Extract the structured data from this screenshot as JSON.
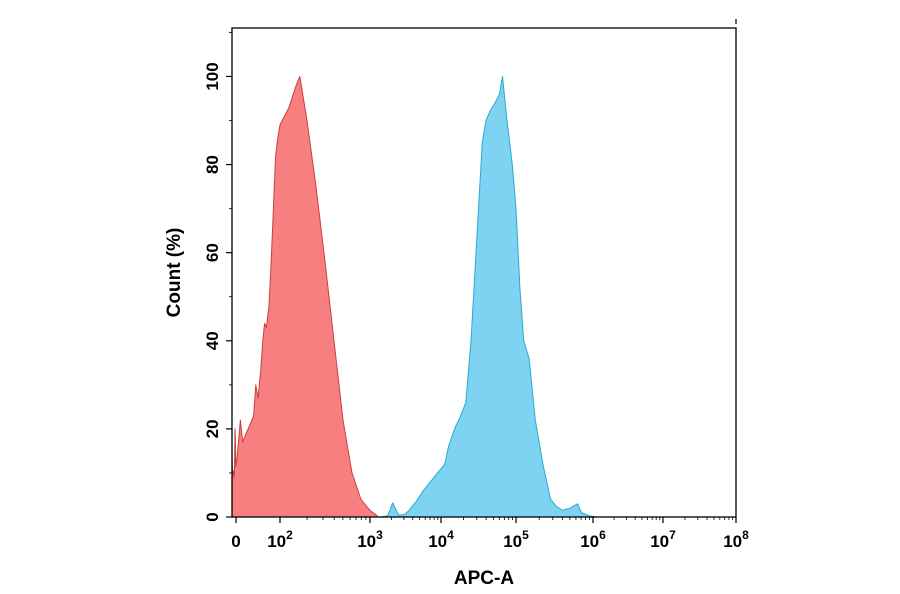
{
  "chart_data": {
    "type": "area",
    "xlabel": "APC-A",
    "ylabel": "Count (%)",
    "x_scale": "log",
    "xlim": [
      -1,
      8
    ],
    "ylim": [
      0,
      111
    ],
    "grid": false,
    "legend": "none",
    "x_ticks": [
      {
        "value": 0,
        "base": "0",
        "exp": ""
      },
      {
        "value": 2,
        "base": "10",
        "exp": "2"
      },
      {
        "value": 3,
        "base": "10",
        "exp": "3"
      },
      {
        "value": 4,
        "base": "10",
        "exp": "4"
      },
      {
        "value": 5,
        "base": "10",
        "exp": "5"
      },
      {
        "value": 6,
        "base": "10",
        "exp": "6"
      },
      {
        "value": 7,
        "base": "10",
        "exp": "7"
      },
      {
        "value": 8,
        "base": "10",
        "exp": "8"
      }
    ],
    "y_ticks": [
      {
        "value": 0,
        "label": "0"
      },
      {
        "value": 20,
        "label": "20"
      },
      {
        "value": 40,
        "label": "40"
      },
      {
        "value": 60,
        "label": "60"
      },
      {
        "value": 80,
        "label": "80"
      },
      {
        "value": 100,
        "label": "100"
      }
    ],
    "series": [
      {
        "fill": "#f87f7f",
        "stroke": "#c84040",
        "points": [
          [
            -0.98,
            14
          ],
          [
            -0.92,
            11
          ],
          [
            -0.85,
            9.5
          ],
          [
            -0.75,
            10
          ],
          [
            -0.6,
            10.5
          ],
          [
            -0.45,
            9
          ],
          [
            -0.35,
            12
          ],
          [
            -0.25,
            20
          ],
          [
            -0.15,
            18
          ],
          [
            -0.05,
            11.5
          ],
          [
            0.05,
            13.5
          ],
          [
            0.2,
            22
          ],
          [
            0.3,
            17
          ],
          [
            0.42,
            18.5
          ],
          [
            0.55,
            20
          ],
          [
            0.68,
            21.5
          ],
          [
            0.8,
            23
          ],
          [
            0.9,
            30
          ],
          [
            1.0,
            27
          ],
          [
            1.12,
            33
          ],
          [
            1.22,
            40
          ],
          [
            1.3,
            44
          ],
          [
            1.38,
            43
          ],
          [
            1.5,
            48
          ],
          [
            1.6,
            58
          ],
          [
            1.7,
            70
          ],
          [
            1.8,
            82
          ],
          [
            1.9,
            86
          ],
          [
            2.0,
            89
          ],
          [
            2.1,
            93
          ],
          [
            2.18,
            98
          ],
          [
            2.22,
            100
          ],
          [
            2.3,
            90
          ],
          [
            2.4,
            75
          ],
          [
            2.5,
            58
          ],
          [
            2.6,
            40
          ],
          [
            2.7,
            22
          ],
          [
            2.8,
            10
          ],
          [
            2.9,
            4
          ],
          [
            3.0,
            1.5
          ],
          [
            3.1,
            0.3
          ]
        ]
      },
      {
        "fill": "#7fd3f2",
        "stroke": "#2aa9cf",
        "points": [
          [
            3.15,
            0
          ],
          [
            3.25,
            0.3
          ],
          [
            3.32,
            3.2
          ],
          [
            3.4,
            0.5
          ],
          [
            3.48,
            0.5
          ],
          [
            3.55,
            1.5
          ],
          [
            3.65,
            3.5
          ],
          [
            3.75,
            6
          ],
          [
            3.85,
            8
          ],
          [
            3.95,
            10
          ],
          [
            4.05,
            12
          ],
          [
            4.1,
            16
          ],
          [
            4.18,
            20
          ],
          [
            4.25,
            22.5
          ],
          [
            4.33,
            26
          ],
          [
            4.4,
            40
          ],
          [
            4.45,
            55
          ],
          [
            4.5,
            70
          ],
          [
            4.55,
            85
          ],
          [
            4.6,
            90
          ],
          [
            4.65,
            92
          ],
          [
            4.72,
            94
          ],
          [
            4.78,
            96
          ],
          [
            4.82,
            100
          ],
          [
            4.88,
            90
          ],
          [
            4.95,
            80
          ],
          [
            5.0,
            70
          ],
          [
            5.05,
            52
          ],
          [
            5.1,
            40
          ],
          [
            5.17,
            36
          ],
          [
            5.25,
            22
          ],
          [
            5.35,
            12
          ],
          [
            5.45,
            4
          ],
          [
            5.52,
            2.5
          ],
          [
            5.6,
            1.5
          ],
          [
            5.7,
            2
          ],
          [
            5.8,
            3
          ],
          [
            5.85,
            1
          ],
          [
            5.95,
            0.3
          ],
          [
            6.05,
            0
          ]
        ]
      }
    ]
  }
}
